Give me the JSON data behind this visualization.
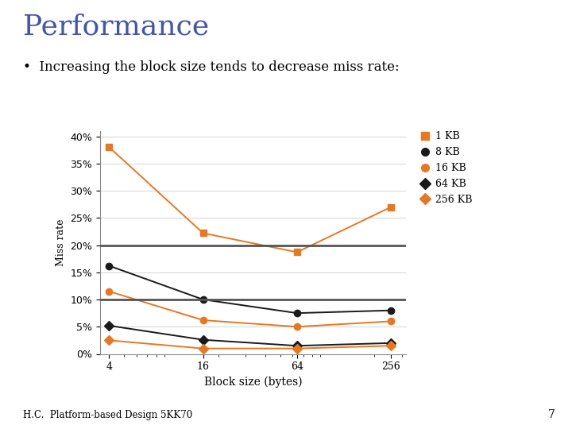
{
  "x_values": [
    4,
    16,
    64,
    256
  ],
  "series": [
    {
      "label": "1 KB",
      "values": [
        0.38,
        0.222,
        0.187,
        0.27
      ],
      "color": "#E87722",
      "marker": "s",
      "linestyle": "-",
      "linecolor": "#E87722"
    },
    {
      "label": "8 KB",
      "values": [
        0.162,
        0.1,
        0.075,
        0.08
      ],
      "color": "#1a1a1a",
      "marker": "o",
      "linestyle": "-",
      "linecolor": "#1a1a1a"
    },
    {
      "label": "16 KB",
      "values": [
        0.115,
        0.062,
        0.05,
        0.06
      ],
      "color": "#E87722",
      "marker": "o",
      "linestyle": "-",
      "linecolor": "#E87722"
    },
    {
      "label": "64 KB",
      "values": [
        0.052,
        0.026,
        0.015,
        0.02
      ],
      "color": "#1a1a1a",
      "marker": "D",
      "linestyle": "-",
      "linecolor": "#1a1a1a"
    },
    {
      "label": "256 KB",
      "values": [
        0.025,
        0.01,
        0.01,
        0.015
      ],
      "color": "#E87722",
      "marker": "D",
      "linestyle": "-",
      "linecolor": "#E87722"
    }
  ],
  "hlines": [
    0.1,
    0.2
  ],
  "hline_color": "#555555",
  "xlabel": "Block size (bytes)",
  "ylabel": "Miss rate",
  "ylim": [
    0.0,
    0.41
  ],
  "yticks": [
    0.0,
    0.05,
    0.1,
    0.15,
    0.2,
    0.25,
    0.3,
    0.35,
    0.4
  ],
  "xticks": [
    4,
    16,
    64,
    256
  ],
  "background_color": "#ffffff",
  "title": "Performance",
  "subtitle": "•  Increasing the block size tends to decrease miss rate:",
  "title_color": "#4455AA",
  "subtitle_color": "#000000",
  "footer": "H.C.  Platform-based Design 5KK70",
  "footer_color": "#000000",
  "page_number": "7"
}
